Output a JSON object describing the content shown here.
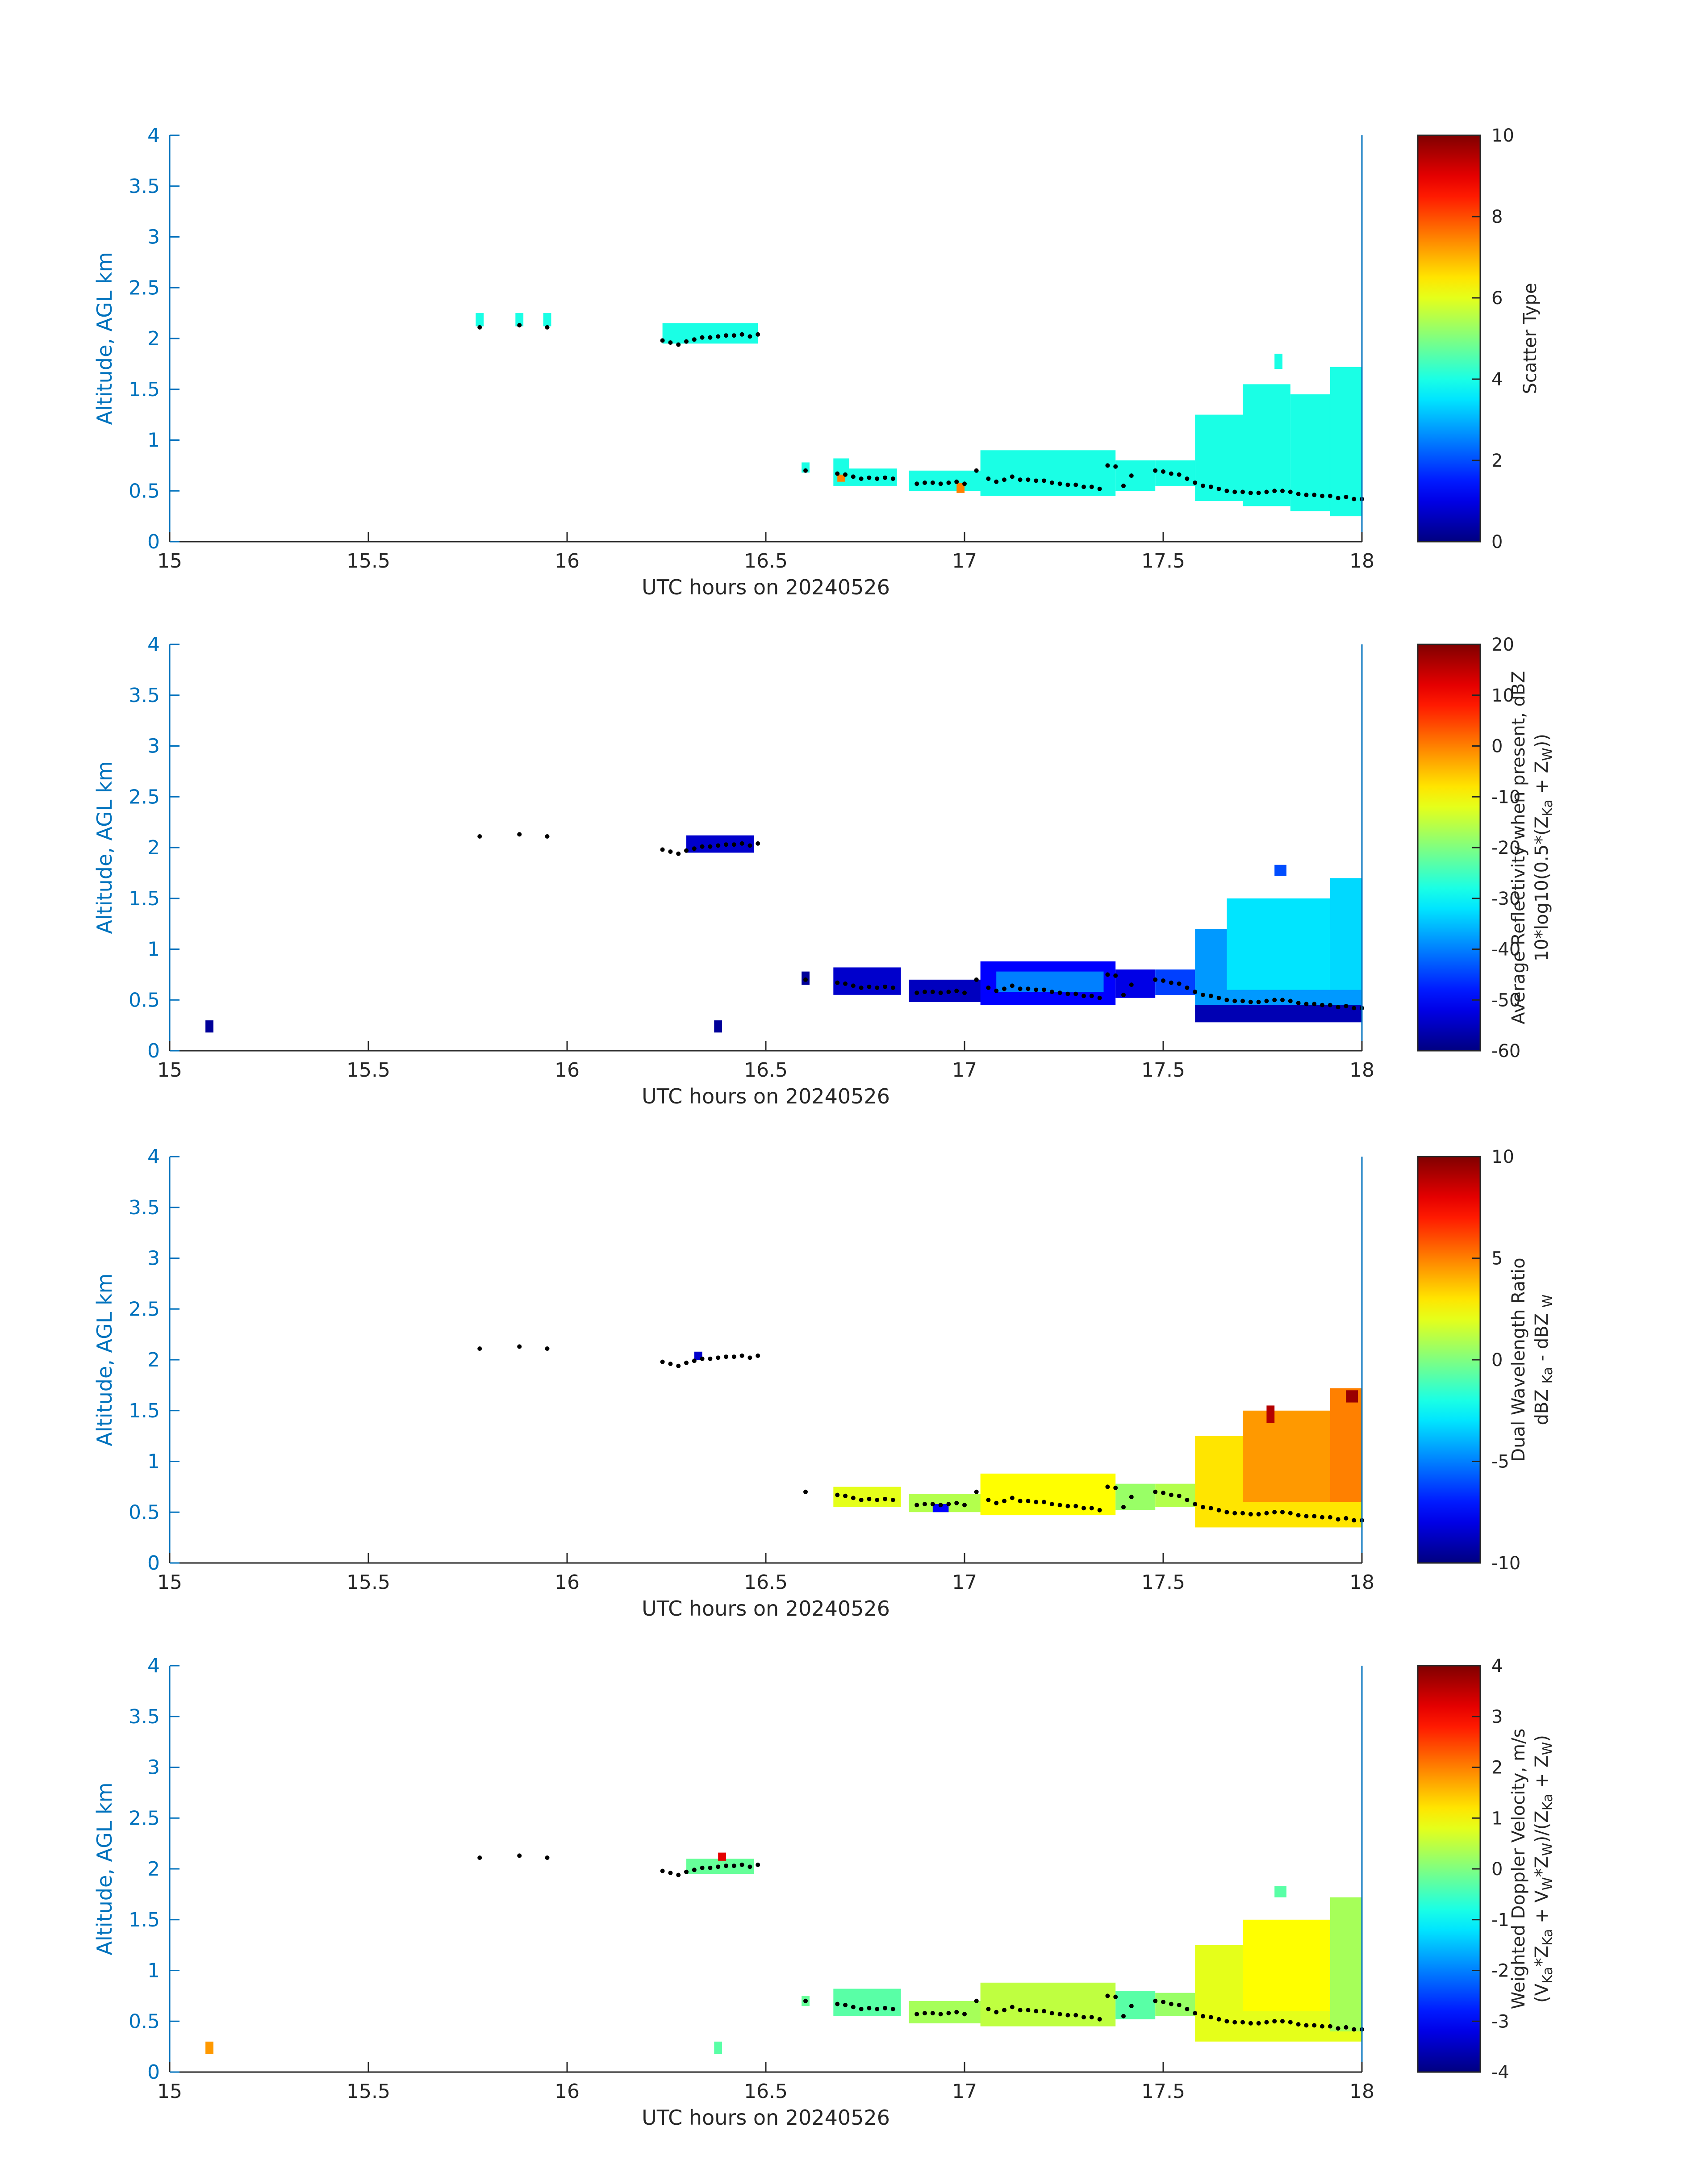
{
  "chart_data": [
    {
      "type": "heatmap",
      "panel": "scatter-type",
      "xlabel": "UTC hours on 20240526",
      "ylabel": "Altitude, AGL km",
      "xlim": [
        15,
        18
      ],
      "ylim": [
        0,
        4
      ],
      "xticks": [
        "15",
        "15.5",
        "16",
        "16.5",
        "17",
        "17.5",
        "18"
      ],
      "yticks": [
        "0",
        "0.5",
        "1",
        "1.5",
        "2",
        "2.5",
        "3",
        "3.5",
        "4"
      ],
      "colorbar": {
        "label_lines": [
          "Scatter Type"
        ],
        "min": 0,
        "max": 10,
        "ticks": [
          "0",
          "2",
          "4",
          "6",
          "8",
          "10"
        ]
      },
      "colormap": "jet",
      "cells": [
        {
          "x0": 15.77,
          "x1": 15.79,
          "y0": 2.12,
          "y1": 2.25,
          "v": 4.0
        },
        {
          "x0": 15.87,
          "x1": 15.89,
          "y0": 2.12,
          "y1": 2.25,
          "v": 4.0
        },
        {
          "x0": 15.94,
          "x1": 15.96,
          "y0": 2.12,
          "y1": 2.25,
          "v": 4.0
        },
        {
          "x0": 16.24,
          "x1": 16.48,
          "y0": 1.95,
          "y1": 2.15,
          "v": 4.0
        },
        {
          "x0": 16.59,
          "x1": 16.61,
          "y0": 0.68,
          "y1": 0.78,
          "v": 4.0
        },
        {
          "x0": 16.67,
          "x1": 16.71,
          "y0": 0.55,
          "y1": 0.82,
          "v": 4.0
        },
        {
          "x0": 16.71,
          "x1": 16.83,
          "y0": 0.55,
          "y1": 0.72,
          "v": 4.0
        },
        {
          "x0": 16.68,
          "x1": 16.7,
          "y0": 0.59,
          "y1": 0.66,
          "v": 7.5
        },
        {
          "x0": 16.86,
          "x1": 17.05,
          "y0": 0.5,
          "y1": 0.7,
          "v": 4.0
        },
        {
          "x0": 16.98,
          "x1": 17.0,
          "y0": 0.48,
          "y1": 0.58,
          "v": 7.5
        },
        {
          "x0": 17.04,
          "x1": 17.38,
          "y0": 0.45,
          "y1": 0.9,
          "v": 4.0
        },
        {
          "x0": 17.38,
          "x1": 17.48,
          "y0": 0.5,
          "y1": 0.8,
          "v": 4.0
        },
        {
          "x0": 17.48,
          "x1": 17.58,
          "y0": 0.55,
          "y1": 0.8,
          "v": 4.0
        },
        {
          "x0": 17.58,
          "x1": 17.7,
          "y0": 0.4,
          "y1": 1.25,
          "v": 4.0
        },
        {
          "x0": 17.7,
          "x1": 17.82,
          "y0": 0.35,
          "y1": 1.55,
          "v": 4.0
        },
        {
          "x0": 17.78,
          "x1": 17.8,
          "y0": 1.7,
          "y1": 1.85,
          "v": 4.0
        },
        {
          "x0": 17.82,
          "x1": 17.92,
          "y0": 0.3,
          "y1": 1.45,
          "v": 4.0
        },
        {
          "x0": 17.92,
          "x1": 18.0,
          "y0": 0.25,
          "y1": 1.72,
          "v": 4.0
        }
      ]
    },
    {
      "type": "heatmap",
      "panel": "average-reflectivity",
      "xlabel": "UTC hours on 20240526",
      "ylabel": "Altitude, AGL km",
      "xlim": [
        15,
        18
      ],
      "ylim": [
        0,
        4
      ],
      "xticks": [
        "15",
        "15.5",
        "16",
        "16.5",
        "17",
        "17.5",
        "18"
      ],
      "yticks": [
        "0",
        "0.5",
        "1",
        "1.5",
        "2",
        "2.5",
        "3",
        "3.5",
        "4"
      ],
      "colorbar": {
        "label_lines": [
          "Average Reflectivity when present, dBZ",
          "10*log10(0.5*(Z Ka + Z W))"
        ],
        "min": -60,
        "max": 20,
        "ticks": [
          "-60",
          "-50",
          "-40",
          "-30",
          "-20",
          "-10",
          "0",
          "10",
          "20"
        ]
      },
      "colormap": "jet",
      "cells": [
        {
          "x0": 15.09,
          "x1": 15.11,
          "y0": 0.18,
          "y1": 0.3,
          "v": -58
        },
        {
          "x0": 16.37,
          "x1": 16.39,
          "y0": 0.18,
          "y1": 0.3,
          "v": -58
        },
        {
          "x0": 16.3,
          "x1": 16.47,
          "y0": 1.95,
          "y1": 2.12,
          "v": -54
        },
        {
          "x0": 16.59,
          "x1": 16.61,
          "y0": 0.65,
          "y1": 0.78,
          "v": -58
        },
        {
          "x0": 16.67,
          "x1": 16.84,
          "y0": 0.55,
          "y1": 0.82,
          "v": -54
        },
        {
          "x0": 16.86,
          "x1": 17.05,
          "y0": 0.48,
          "y1": 0.7,
          "v": -55
        },
        {
          "x0": 17.04,
          "x1": 17.38,
          "y0": 0.45,
          "y1": 0.88,
          "v": -50
        },
        {
          "x0": 17.08,
          "x1": 17.35,
          "y0": 0.58,
          "y1": 0.78,
          "v": -40
        },
        {
          "x0": 17.38,
          "x1": 17.48,
          "y0": 0.52,
          "y1": 0.8,
          "v": -52
        },
        {
          "x0": 17.48,
          "x1": 17.58,
          "y0": 0.55,
          "y1": 0.8,
          "v": -45
        },
        {
          "x0": 17.58,
          "x1": 18.0,
          "y0": 0.38,
          "y1": 1.2,
          "v": -38
        },
        {
          "x0": 17.66,
          "x1": 17.92,
          "y0": 0.6,
          "y1": 1.5,
          "v": -32
        },
        {
          "x0": 17.92,
          "x1": 18.0,
          "y0": 0.6,
          "y1": 1.7,
          "v": -33
        },
        {
          "x0": 17.58,
          "x1": 18.0,
          "y0": 0.28,
          "y1": 0.45,
          "v": -56
        },
        {
          "x0": 17.78,
          "x1": 17.81,
          "y0": 1.72,
          "y1": 1.83,
          "v": -44
        }
      ]
    },
    {
      "type": "heatmap",
      "panel": "dual-wavelength-ratio",
      "xlabel": "UTC hours on 20240526",
      "ylabel": "Altitude, AGL km",
      "xlim": [
        15,
        18
      ],
      "ylim": [
        0,
        4
      ],
      "xticks": [
        "15",
        "15.5",
        "16",
        "16.5",
        "17",
        "17.5",
        "18"
      ],
      "yticks": [
        "0",
        "0.5",
        "1",
        "1.5",
        "2",
        "2.5",
        "3",
        "3.5",
        "4"
      ],
      "colorbar": {
        "label_lines": [
          "Dual Wavelength Ratio",
          "dBZ Ka - dBZ W"
        ],
        "min": -10,
        "max": 10,
        "ticks": [
          "-10",
          "-5",
          "0",
          "5",
          "10"
        ]
      },
      "colormap": "jet",
      "cells": [
        {
          "x0": 16.32,
          "x1": 16.34,
          "y0": 2.0,
          "y1": 2.08,
          "v": -8.5
        },
        {
          "x0": 16.67,
          "x1": 16.84,
          "y0": 0.55,
          "y1": 0.75,
          "v": 2.0
        },
        {
          "x0": 16.86,
          "x1": 17.05,
          "y0": 0.5,
          "y1": 0.68,
          "v": 1.0
        },
        {
          "x0": 16.92,
          "x1": 16.96,
          "y0": 0.5,
          "y1": 0.58,
          "v": -7.5
        },
        {
          "x0": 17.04,
          "x1": 17.38,
          "y0": 0.47,
          "y1": 0.88,
          "v": 2.5
        },
        {
          "x0": 17.38,
          "x1": 17.48,
          "y0": 0.52,
          "y1": 0.78,
          "v": 0.5
        },
        {
          "x0": 17.48,
          "x1": 17.58,
          "y0": 0.55,
          "y1": 0.78,
          "v": 1.0
        },
        {
          "x0": 17.58,
          "x1": 18.0,
          "y0": 0.35,
          "y1": 1.25,
          "v": 3.0
        },
        {
          "x0": 17.7,
          "x1": 17.92,
          "y0": 0.6,
          "y1": 1.5,
          "v": 4.5
        },
        {
          "x0": 17.92,
          "x1": 18.0,
          "y0": 0.6,
          "y1": 1.72,
          "v": 5.0
        },
        {
          "x0": 17.76,
          "x1": 17.78,
          "y0": 1.38,
          "y1": 1.55,
          "v": 9.0
        },
        {
          "x0": 17.96,
          "x1": 17.99,
          "y0": 1.58,
          "y1": 1.7,
          "v": 9.5
        }
      ]
    },
    {
      "type": "heatmap",
      "panel": "weighted-doppler-velocity",
      "xlabel": "UTC hours on 20240526",
      "ylabel": "Altitude, AGL km",
      "xlim": [
        15,
        18
      ],
      "ylim": [
        0,
        4
      ],
      "xticks": [
        "15",
        "15.5",
        "16",
        "16.5",
        "17",
        "17.5",
        "18"
      ],
      "yticks": [
        "0",
        "0.5",
        "1",
        "1.5",
        "2",
        "2.5",
        "3",
        "3.5",
        "4"
      ],
      "colorbar": {
        "label_lines": [
          "Weighted Doppler Velocity, m/s",
          "(V Ka*Z Ka + V W*Z W)/(Z Ka + Z W)"
        ],
        "min": -4,
        "max": 4,
        "ticks": [
          "-4",
          "-3",
          "-2",
          "-1",
          "0",
          "1",
          "2",
          "3",
          "4"
        ]
      },
      "colormap": "jet",
      "cells": [
        {
          "x0": 15.09,
          "x1": 15.11,
          "y0": 0.18,
          "y1": 0.3,
          "v": 1.8
        },
        {
          "x0": 16.37,
          "x1": 16.39,
          "y0": 0.18,
          "y1": 0.3,
          "v": -0.3
        },
        {
          "x0": 16.3,
          "x1": 16.47,
          "y0": 1.95,
          "y1": 2.1,
          "v": -0.2
        },
        {
          "x0": 16.38,
          "x1": 16.4,
          "y0": 2.08,
          "y1": 2.16,
          "v": 3.2
        },
        {
          "x0": 16.59,
          "x1": 16.61,
          "y0": 0.65,
          "y1": 0.75,
          "v": -0.2
        },
        {
          "x0": 16.67,
          "x1": 16.84,
          "y0": 0.55,
          "y1": 0.82,
          "v": -0.3
        },
        {
          "x0": 16.86,
          "x1": 17.05,
          "y0": 0.48,
          "y1": 0.7,
          "v": 0.3
        },
        {
          "x0": 17.04,
          "x1": 17.38,
          "y0": 0.45,
          "y1": 0.88,
          "v": 0.5
        },
        {
          "x0": 17.38,
          "x1": 17.48,
          "y0": 0.52,
          "y1": 0.8,
          "v": -0.3
        },
        {
          "x0": 17.48,
          "x1": 17.58,
          "y0": 0.55,
          "y1": 0.78,
          "v": 0.2
        },
        {
          "x0": 17.58,
          "x1": 18.0,
          "y0": 0.3,
          "y1": 1.25,
          "v": 0.8
        },
        {
          "x0": 17.7,
          "x1": 17.92,
          "y0": 0.6,
          "y1": 1.5,
          "v": 1.0
        },
        {
          "x0": 17.92,
          "x1": 18.0,
          "y0": 0.4,
          "y1": 1.72,
          "v": 0.3
        },
        {
          "x0": 17.78,
          "x1": 17.81,
          "y0": 1.72,
          "y1": 1.83,
          "v": -0.3
        }
      ]
    }
  ],
  "cloud_base_points": [
    [
      15.78,
      2.11
    ],
    [
      15.88,
      2.13
    ],
    [
      15.95,
      2.11
    ],
    [
      16.24,
      1.98
    ],
    [
      16.26,
      1.96
    ],
    [
      16.28,
      1.94
    ],
    [
      16.3,
      1.97
    ],
    [
      16.32,
      1.99
    ],
    [
      16.34,
      2.01
    ],
    [
      16.36,
      2.01
    ],
    [
      16.38,
      2.02
    ],
    [
      16.4,
      2.03
    ],
    [
      16.42,
      2.03
    ],
    [
      16.44,
      2.04
    ],
    [
      16.46,
      2.02
    ],
    [
      16.48,
      2.04
    ],
    [
      16.6,
      0.7
    ],
    [
      16.68,
      0.67
    ],
    [
      16.7,
      0.66
    ],
    [
      16.72,
      0.64
    ],
    [
      16.74,
      0.62
    ],
    [
      16.76,
      0.63
    ],
    [
      16.78,
      0.62
    ],
    [
      16.8,
      0.63
    ],
    [
      16.82,
      0.62
    ],
    [
      16.88,
      0.57
    ],
    [
      16.9,
      0.58
    ],
    [
      16.92,
      0.58
    ],
    [
      16.94,
      0.57
    ],
    [
      16.96,
      0.58
    ],
    [
      16.98,
      0.59
    ],
    [
      17.0,
      0.57
    ],
    [
      17.03,
      0.7
    ],
    [
      17.06,
      0.62
    ],
    [
      17.08,
      0.59
    ],
    [
      17.1,
      0.61
    ],
    [
      17.12,
      0.64
    ],
    [
      17.14,
      0.61
    ],
    [
      17.16,
      0.61
    ],
    [
      17.18,
      0.6
    ],
    [
      17.2,
      0.6
    ],
    [
      17.22,
      0.58
    ],
    [
      17.24,
      0.57
    ],
    [
      17.26,
      0.56
    ],
    [
      17.28,
      0.56
    ],
    [
      17.3,
      0.54
    ],
    [
      17.32,
      0.54
    ],
    [
      17.34,
      0.52
    ],
    [
      17.36,
      0.75
    ],
    [
      17.38,
      0.74
    ],
    [
      17.4,
      0.55
    ],
    [
      17.42,
      0.65
    ],
    [
      17.48,
      0.7
    ],
    [
      17.5,
      0.69
    ],
    [
      17.52,
      0.67
    ],
    [
      17.54,
      0.66
    ],
    [
      17.56,
      0.62
    ],
    [
      17.58,
      0.58
    ],
    [
      17.6,
      0.55
    ],
    [
      17.62,
      0.54
    ],
    [
      17.64,
      0.52
    ],
    [
      17.66,
      0.5
    ],
    [
      17.68,
      0.49
    ],
    [
      17.7,
      0.49
    ],
    [
      17.72,
      0.48
    ],
    [
      17.74,
      0.48
    ],
    [
      17.76,
      0.49
    ],
    [
      17.78,
      0.5
    ],
    [
      17.8,
      0.5
    ],
    [
      17.82,
      0.49
    ],
    [
      17.84,
      0.47
    ],
    [
      17.86,
      0.46
    ],
    [
      17.88,
      0.46
    ],
    [
      17.9,
      0.45
    ],
    [
      17.92,
      0.45
    ],
    [
      17.94,
      0.43
    ],
    [
      17.96,
      0.44
    ],
    [
      17.98,
      0.42
    ],
    [
      18.0,
      0.42
    ]
  ]
}
